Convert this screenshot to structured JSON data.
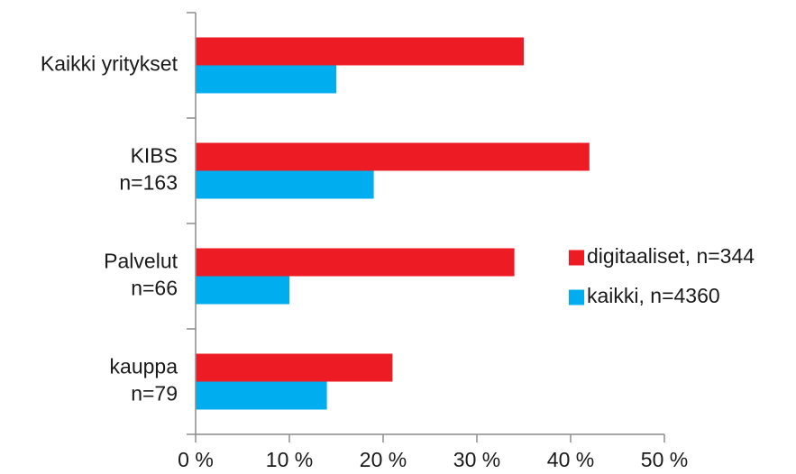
{
  "chart_data": {
    "type": "bar",
    "orientation": "horizontal",
    "categories": [
      [
        "Kaikki yritykset"
      ],
      [
        "KIBS",
        "n=163"
      ],
      [
        "Palvelut",
        "n=66"
      ],
      [
        "kauppa",
        "n=79"
      ]
    ],
    "series": [
      {
        "name": "digitaaliset, n=344",
        "color": "#ed1c24",
        "values": [
          35,
          42,
          34,
          21
        ]
      },
      {
        "name": "kaikki, n=4360",
        "color": "#00aeef",
        "values": [
          15,
          19,
          10,
          14
        ]
      }
    ],
    "xlim": [
      0,
      50
    ],
    "xticks": [
      0,
      10,
      20,
      30,
      40,
      50
    ],
    "xtick_labels": [
      "0 %",
      "10 %",
      "20 %",
      "30 %",
      "40 %",
      "50 %"
    ],
    "grid": false,
    "legend_position": "right"
  }
}
